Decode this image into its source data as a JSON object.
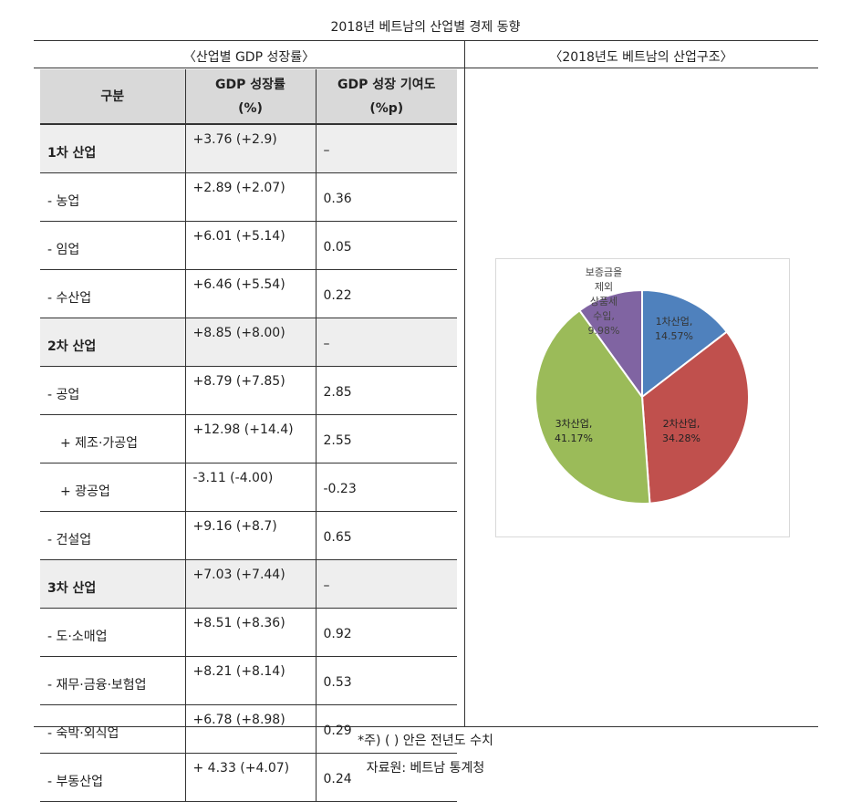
{
  "title": "2018년 베트남의 산업별 경제 동향",
  "left_heading": "〈산업별 GDP 성장률〉",
  "right_heading": "〈2018년도 베트남의 산업구조〉",
  "table": {
    "headers": [
      "구분",
      "GDP 성장률\n(%)",
      "GDP 성장 기여도\n(%p)"
    ],
    "rows": [
      {
        "label": "1차 산업",
        "growth": "+3.76 (+2.9)",
        "contrib": "–",
        "group": true
      },
      {
        "label": "- 농업",
        "growth": "+2.89 (+2.07)",
        "contrib": "0.36"
      },
      {
        "label": "- 임업",
        "growth": "+6.01 (+5.14)",
        "contrib": "0.05"
      },
      {
        "label": "- 수산업",
        "growth": "+6.46 (+5.54)",
        "contrib": "0.22"
      },
      {
        "label": "2차 산업",
        "growth": "+8.85 (+8.00)",
        "contrib": "–",
        "group": true
      },
      {
        "label": "- 공업",
        "growth": "+8.79 (+7.85)",
        "contrib": "2.85"
      },
      {
        "label": "+ 제조·가공업",
        "growth": "+12.98 (+14.4)",
        "contrib": "2.55",
        "indent": true
      },
      {
        "label": "+ 광공업",
        "growth": "-3.11 (-4.00)",
        "contrib": "-0.23",
        "indent": true
      },
      {
        "label": "- 건설업",
        "growth": "+9.16 (+8.7)",
        "contrib": "0.65"
      },
      {
        "label": "3차 산업",
        "growth": "+7.03 (+7.44)",
        "contrib": "–",
        "group": true
      },
      {
        "label": "- 도·소매업",
        "growth": "+8.51 (+8.36)",
        "contrib": "0.92"
      },
      {
        "label": "- 재무·금융·보험업",
        "growth": "+8.21 (+8.14)",
        "contrib": "0.53"
      },
      {
        "label": "- 숙박·외식업",
        "growth": "+6.78 (+8.98)",
        "contrib": "0.29"
      },
      {
        "label": "- 부동산업",
        "growth": "+ 4.33 (+4.07)",
        "contrib": "0.24"
      }
    ]
  },
  "chart_data": {
    "type": "pie",
    "slices": [
      {
        "label": "1차산업,",
        "pct_label": "14.57%",
        "value": 14.57,
        "color": "#4f81bd"
      },
      {
        "label": "2차산업,",
        "pct_label": "34.28%",
        "value": 34.28,
        "color": "#c0504d"
      },
      {
        "label": "3차산업,",
        "pct_label": "41.17%",
        "value": 41.17,
        "color": "#9bbb59"
      },
      {
        "label": "보증금을 제외 상품세 수입,",
        "pct_label": "9.98%",
        "value": 9.98,
        "color": "#8064a2"
      }
    ]
  },
  "footnote": "*주) ( ) 안은 전년도 수치",
  "source": "자료원: 베트남 통계청"
}
